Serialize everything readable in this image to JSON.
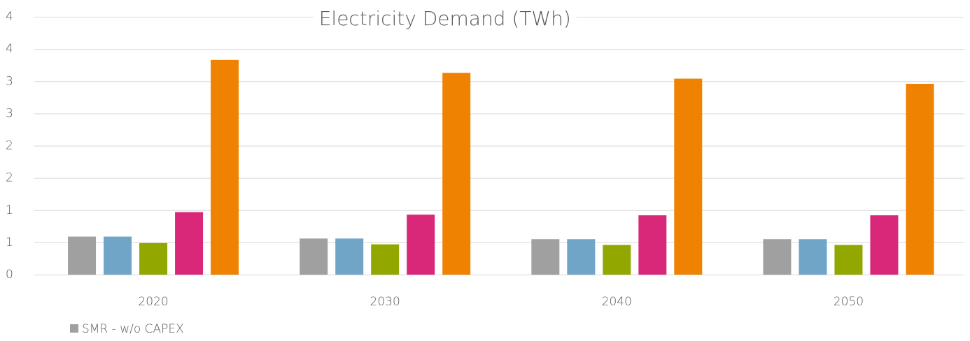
{
  "chart_data": {
    "type": "bar",
    "title": "Electricity Demand (TWh)",
    "categories": [
      "2020",
      "2030",
      "2040",
      "2050"
    ],
    "series": [
      {
        "name": "SMR - w/o CAPEX",
        "color": "#a0a0a0",
        "values": [
          0.59,
          0.56,
          0.55,
          0.55
        ]
      },
      {
        "color": "#71a5c8",
        "values": [
          0.59,
          0.56,
          0.55,
          0.55
        ]
      },
      {
        "color": "#92a800",
        "values": [
          0.49,
          0.47,
          0.46,
          0.46
        ]
      },
      {
        "color": "#d9287a",
        "values": [
          0.97,
          0.93,
          0.92,
          0.92
        ]
      },
      {
        "color": "#ef8200",
        "values": [
          3.33,
          3.13,
          3.04,
          2.96
        ]
      }
    ],
    "ylim": [
      0,
      4
    ],
    "yticks": [
      0,
      {
        "value": 0.5,
        "label": "1"
      },
      1,
      {
        "value": 1.5,
        "label": "2"
      },
      2,
      {
        "value": 2.5,
        "label": "3"
      },
      3,
      {
        "value": 3.5,
        "label": "4"
      },
      4
    ],
    "grid": true,
    "legend": "bottom-left"
  }
}
